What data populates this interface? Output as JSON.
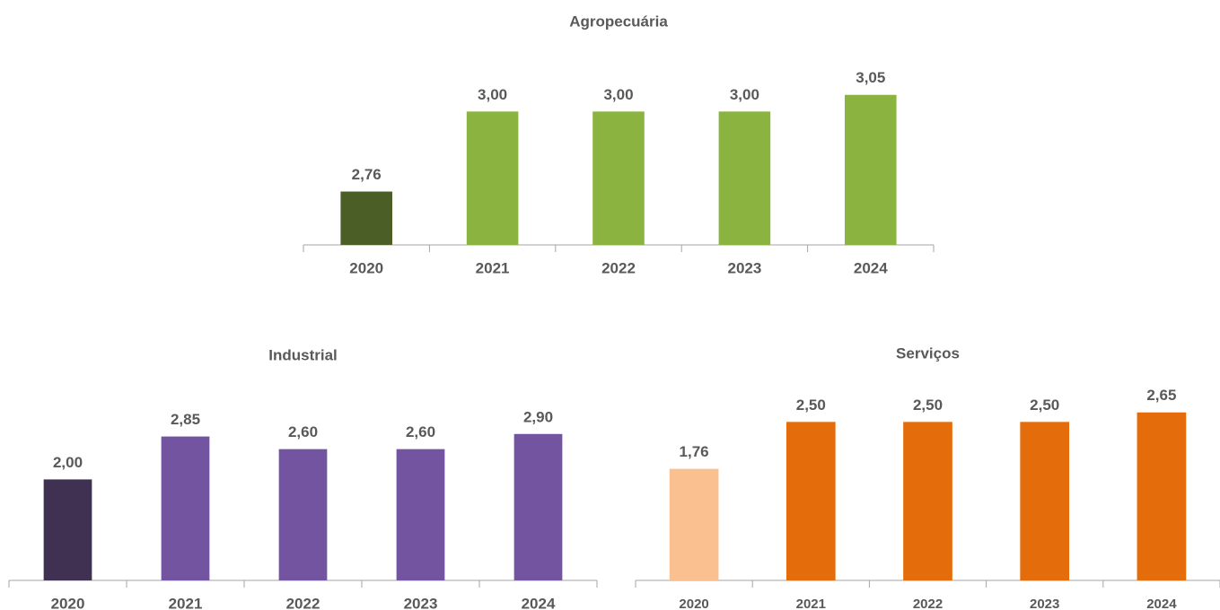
{
  "chart_data": [
    {
      "type": "bar",
      "title": "Agropecuária",
      "categories": [
        "2020",
        "2021",
        "2022",
        "2023",
        "2024"
      ],
      "values": [
        2.76,
        3.0,
        3.0,
        3.0,
        3.05
      ],
      "value_labels": [
        "2,76",
        "3,00",
        "3,00",
        "3,00",
        "3,05"
      ],
      "colors": [
        "#4b5e26",
        "#8ab43f",
        "#8ab43f",
        "#8ab43f",
        "#8ab43f"
      ],
      "ylim": [
        2.6,
        3.2
      ]
    },
    {
      "type": "bar",
      "title": "Industrial",
      "categories": [
        "2020",
        "2021",
        "2022",
        "2023",
        "2024"
      ],
      "values": [
        2.0,
        2.85,
        2.6,
        2.6,
        2.9
      ],
      "value_labels": [
        "2,00",
        "2,85",
        "2,60",
        "2,60",
        "2,90"
      ],
      "colors": [
        "#403152",
        "#7254a0",
        "#7254a0",
        "#7254a0",
        "#7254a0"
      ],
      "ylim": [
        0,
        3.5
      ]
    },
    {
      "type": "bar",
      "title": "Serviços",
      "categories": [
        "2020",
        "2021",
        "2022",
        "2023",
        "2024"
      ],
      "values": [
        1.76,
        2.5,
        2.5,
        2.5,
        2.65
      ],
      "value_labels": [
        "1,76",
        "2,50",
        "2,50",
        "2,50",
        "2,65"
      ],
      "colors": [
        "#fac090",
        "#e46c0a",
        "#e46c0a",
        "#e46c0a",
        "#e46c0a"
      ],
      "ylim": [
        0,
        3
      ]
    }
  ]
}
